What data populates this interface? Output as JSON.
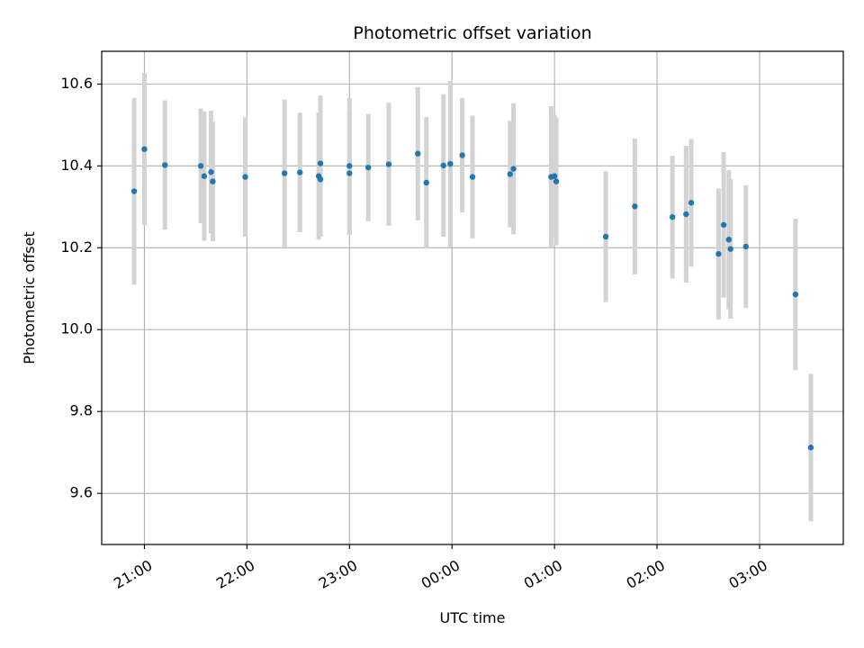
{
  "chart_data": {
    "type": "scatter",
    "title": "Photometric offset variation",
    "xlabel": "UTC time",
    "ylabel": "Photometric offset",
    "x_is_time": true,
    "x_tick_labels": [
      "21:00",
      "22:00",
      "23:00",
      "00:00",
      "01:00",
      "02:00",
      "03:00"
    ],
    "x_tick_values": [
      "21:00",
      "22:00",
      "23:00",
      "24:00",
      "25:00",
      "26:00",
      "27:00"
    ],
    "xlim": [
      "20:35",
      "27:49"
    ],
    "ylim": [
      9.475,
      10.68
    ],
    "y_ticks": [
      9.6,
      9.8,
      10.0,
      10.2,
      10.4,
      10.6
    ],
    "grid": true,
    "point_color": "#1f77b4",
    "errorbar_color": "#d3d3d3",
    "points": [
      {
        "t": "20:54",
        "y": 10.338,
        "err": 0.228
      },
      {
        "t": "21:00",
        "y": 10.441,
        "err": 0.186
      },
      {
        "t": "21:12",
        "y": 10.402,
        "err": 0.158
      },
      {
        "t": "21:33",
        "y": 10.4,
        "err": 0.14
      },
      {
        "t": "21:35",
        "y": 10.375,
        "err": 0.158
      },
      {
        "t": "21:39",
        "y": 10.385,
        "err": 0.15
      },
      {
        "t": "21:40",
        "y": 10.362,
        "err": 0.146
      },
      {
        "t": "21:59",
        "y": 10.373,
        "err": 0.146
      },
      {
        "t": "22:22",
        "y": 10.382,
        "err": 0.18
      },
      {
        "t": "22:31",
        "y": 10.384,
        "err": 0.146
      },
      {
        "t": "22:42",
        "y": 10.375,
        "err": 0.155
      },
      {
        "t": "22:43",
        "y": 10.406,
        "err": 0.166
      },
      {
        "t": "22:43",
        "y": 10.367,
        "err": 0.14
      },
      {
        "t": "23:00",
        "y": 10.4,
        "err": 0.166
      },
      {
        "t": "23:00",
        "y": 10.382,
        "err": 0.15
      },
      {
        "t": "23:11",
        "y": 10.396,
        "err": 0.131
      },
      {
        "t": "23:23",
        "y": 10.404,
        "err": 0.15
      },
      {
        "t": "23:40",
        "y": 10.43,
        "err": 0.163
      },
      {
        "t": "23:45",
        "y": 10.359,
        "err": 0.16
      },
      {
        "t": "23:55",
        "y": 10.401,
        "err": 0.174
      },
      {
        "t": "23:59",
        "y": 10.405,
        "err": 0.203
      },
      {
        "t": "24:06",
        "y": 10.426,
        "err": 0.14
      },
      {
        "t": "24:12",
        "y": 10.373,
        "err": 0.15
      },
      {
        "t": "24:34",
        "y": 10.38,
        "err": 0.13
      },
      {
        "t": "24:36",
        "y": 10.393,
        "err": 0.16
      },
      {
        "t": "24:58",
        "y": 10.373,
        "err": 0.173
      },
      {
        "t": "25:00",
        "y": 10.375,
        "err": 0.15
      },
      {
        "t": "25:01",
        "y": 10.362,
        "err": 0.156
      },
      {
        "t": "25:30",
        "y": 10.227,
        "err": 0.16
      },
      {
        "t": "25:47",
        "y": 10.301,
        "err": 0.166
      },
      {
        "t": "26:09",
        "y": 10.275,
        "err": 0.15
      },
      {
        "t": "26:17",
        "y": 10.282,
        "err": 0.167
      },
      {
        "t": "26:20",
        "y": 10.31,
        "err": 0.156
      },
      {
        "t": "26:36",
        "y": 10.185,
        "err": 0.16
      },
      {
        "t": "26:39",
        "y": 10.256,
        "err": 0.178
      },
      {
        "t": "26:42",
        "y": 10.22,
        "err": 0.17
      },
      {
        "t": "26:43",
        "y": 10.197,
        "err": 0.17
      },
      {
        "t": "26:52",
        "y": 10.203,
        "err": 0.15
      },
      {
        "t": "27:21",
        "y": 10.086,
        "err": 0.185
      },
      {
        "t": "27:30",
        "y": 9.712,
        "err": 0.18
      }
    ]
  }
}
